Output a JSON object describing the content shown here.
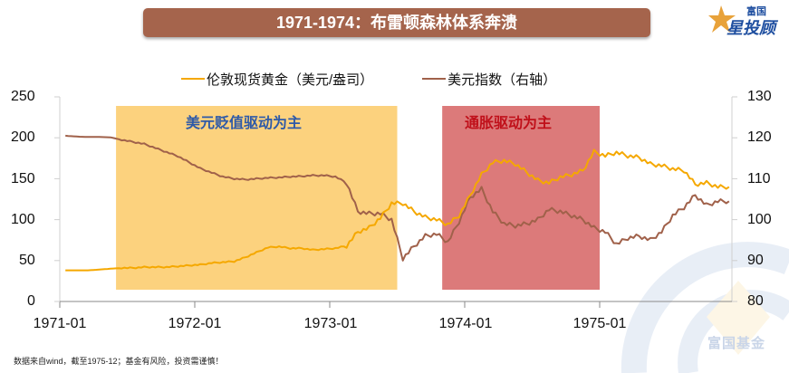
{
  "header": {
    "title": "1971-1974：布雷顿森林体系奔溃",
    "logo_top": "富国",
    "logo_bottom": "星投顾",
    "title_bg_color": "#a5644c"
  },
  "legend": [
    {
      "label": "伦敦现货黄金（美元/盎司）",
      "color": "#f5a800"
    },
    {
      "label": "美元指数（右轴）",
      "color": "#a0614a"
    }
  ],
  "regions": [
    {
      "label": "美元贬值驱动为主",
      "label_color": "#2e5aa8",
      "fill": "#fcd27e",
      "start": "1971-06",
      "end": "1973-07"
    },
    {
      "label": "通胀驱动为主",
      "label_color": "#c0101a",
      "fill": "#dc7a7a",
      "start": "1973-11",
      "end": "1975-01"
    }
  ],
  "footnote": "数据来自wind，截至1975-12；基金有风险，投资需谨慎！",
  "watermark": "富国基金",
  "chart_data": {
    "type": "line",
    "title": "1971-1974：布雷顿森林体系奔溃",
    "xlabel": "",
    "ylabel": "",
    "x_ticks": [
      "1971-01",
      "1972-01",
      "1973-01",
      "1974-01",
      "1975-01"
    ],
    "y_left": {
      "ticks": [
        0,
        50,
        100,
        150,
        200,
        250
      ],
      "range": [
        0,
        250
      ]
    },
    "y_right": {
      "ticks": [
        80,
        90,
        100,
        110,
        120,
        130
      ],
      "range": [
        80,
        130
      ]
    },
    "grid": false,
    "legend_position": "top",
    "x": [
      "1971-01",
      "1971-02",
      "1971-03",
      "1971-04",
      "1971-05",
      "1971-06",
      "1971-07",
      "1971-08",
      "1971-09",
      "1971-10",
      "1971-11",
      "1971-12",
      "1972-01",
      "1972-02",
      "1972-03",
      "1972-04",
      "1972-05",
      "1972-06",
      "1972-07",
      "1972-08",
      "1972-09",
      "1972-10",
      "1972-11",
      "1972-12",
      "1973-01",
      "1973-02",
      "1973-03",
      "1973-04",
      "1973-05",
      "1973-06",
      "1973-07",
      "1973-08",
      "1973-09",
      "1973-10",
      "1973-11",
      "1973-12",
      "1974-01",
      "1974-02",
      "1974-03",
      "1974-04",
      "1974-05",
      "1974-06",
      "1974-07",
      "1974-08",
      "1974-09",
      "1974-10",
      "1974-11",
      "1974-12",
      "1975-01",
      "1975-02",
      "1975-03",
      "1975-04",
      "1975-05",
      "1975-06",
      "1975-07",
      "1975-08",
      "1975-09",
      "1975-10",
      "1975-11",
      "1975-12"
    ],
    "series": [
      {
        "name": "伦敦现货黄金（美元/盎司）",
        "axis": "left",
        "color": "#f5a800",
        "values": [
          38,
          38,
          38,
          39,
          40,
          41,
          41,
          42,
          42,
          42,
          43,
          44,
          45,
          47,
          48,
          49,
          54,
          60,
          66,
          67,
          65,
          65,
          63,
          64,
          65,
          68,
          85,
          90,
          102,
          120,
          120,
          110,
          103,
          100,
          94,
          105,
          130,
          155,
          170,
          172,
          168,
          158,
          148,
          145,
          152,
          155,
          160,
          183,
          178,
          182,
          178,
          176,
          168,
          166,
          162,
          160,
          143,
          145,
          140,
          140
        ]
      },
      {
        "name": "美元指数（右轴）",
        "axis": "right",
        "color": "#a0614a",
        "values": [
          120.5,
          120.3,
          120.2,
          120.2,
          120.1,
          119.5,
          119.0,
          118.5,
          117.5,
          116.5,
          115.5,
          114.0,
          112.5,
          111.5,
          110.5,
          110.0,
          109.8,
          110.0,
          110.2,
          110.3,
          110.5,
          110.6,
          110.8,
          110.8,
          110.5,
          109.0,
          102.0,
          101.5,
          101.5,
          100.0,
          90.5,
          93.5,
          96.0,
          96.5,
          94.5,
          99.5,
          105.5,
          107.5,
          102.0,
          99.0,
          98.5,
          99.0,
          100.0,
          102.5,
          102.0,
          101.0,
          100.0,
          98.0,
          97.0,
          94.0,
          95.5,
          96.0,
          95.0,
          97.0,
          101.0,
          103.0,
          106.0,
          103.5,
          104.5,
          104.5
        ]
      }
    ]
  }
}
